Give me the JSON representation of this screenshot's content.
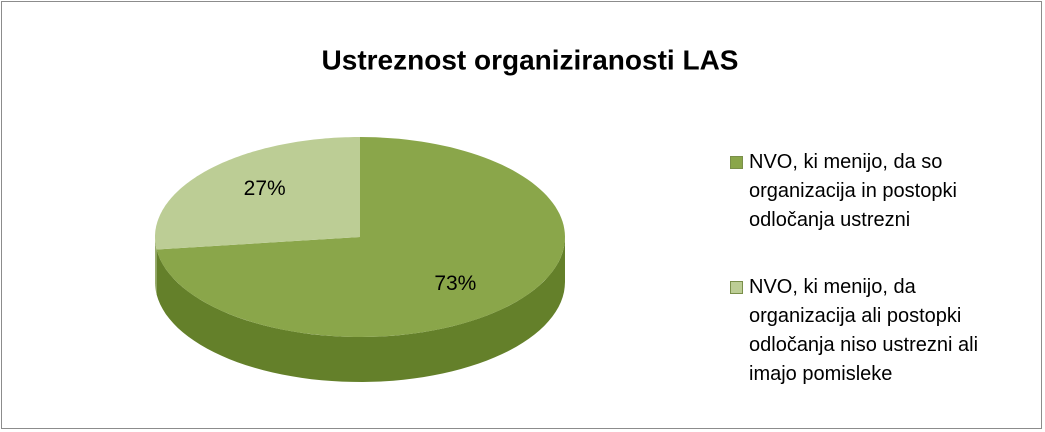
{
  "chart_data": {
    "type": "pie3d",
    "title": "Ustreznost organiziranosti LAS",
    "categories": [
      "NVO, ki menijo, da so organizacija in postopki odločanja ustrezni",
      "NVO, ki menijo, da organizacija ali postopki odločanja niso ustrezni ali imajo pomisleke"
    ],
    "values": [
      73,
      27
    ],
    "value_labels": [
      "73%",
      "27%"
    ],
    "colors": [
      "#8aa64a",
      "#bccd95"
    ],
    "side_colors": [
      "#64802a",
      "#98ac6c"
    ]
  }
}
